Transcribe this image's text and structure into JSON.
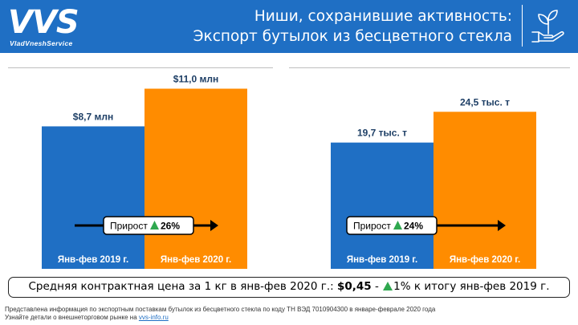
{
  "header": {
    "logo_mark": "VVS",
    "logo_subtitle": "VladVneshService",
    "title_line1": "Ниши, сохранившие активность:",
    "title_line2": "Экспорт бутылок из бесцветного стекла",
    "icon": "plant-in-hand-icon"
  },
  "colors": {
    "header_bg": "#1f6fc4",
    "bar_2019": "#1f6fc4",
    "bar_2020": "#ff8c00",
    "growth_arrow": "#2fa84f"
  },
  "chart_data": [
    {
      "type": "bar",
      "categories": [
        "Янв-фев 2019 г.",
        "Янв-фев 2020 г."
      ],
      "values": [
        8.7,
        11.0
      ],
      "data_labels": [
        "$8,7 млн",
        "$11,0 млн"
      ],
      "unit": "млн",
      "growth_label": "Прирост",
      "growth_value": "26%",
      "ylim": [
        0,
        12.25
      ],
      "grid": false,
      "legend": "none"
    },
    {
      "type": "bar",
      "categories": [
        "Янв-фев 2019 г.",
        "Янв-фев 2020 г."
      ],
      "values": [
        19.7,
        24.5
      ],
      "data_labels": [
        "19,7 тыс. т",
        "24,5 тыс. т"
      ],
      "unit": "тыс. т",
      "growth_label": "Прирост",
      "growth_value": "24%",
      "ylim": [
        0,
        31.3
      ],
      "grid": false,
      "legend": "none"
    }
  ],
  "summary": {
    "prefix": "Средняя контрактная цена за 1 кг в янв-фев 2020 г.: ",
    "price": "$0,45",
    "separator": " - ",
    "change": "1%",
    "suffix": " к итогу янв-фев 2019 г."
  },
  "footnote": {
    "line1": "Представлена информация по экспортным поставкам бутылок из бесцветного стекла по коду ТН ВЭД 7010904300  в январе-феврале 2020 года",
    "line2_prefix": "Узнайте детали о внешнеторговом рынке на ",
    "link": "vvs-info.ru"
  }
}
